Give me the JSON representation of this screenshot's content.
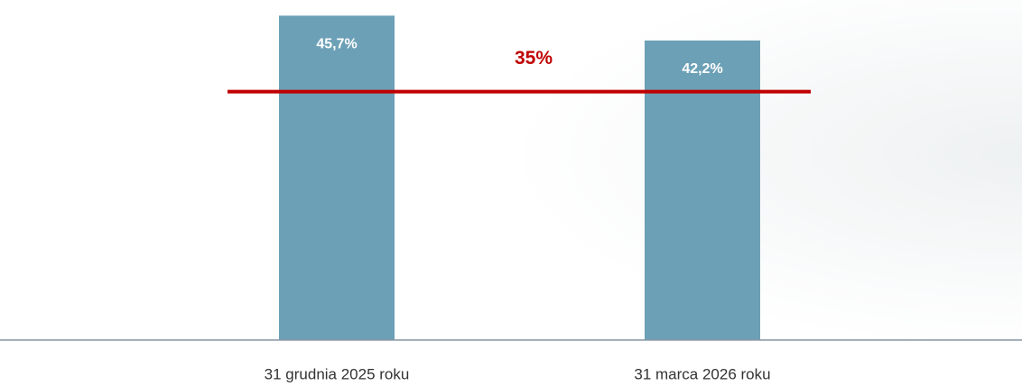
{
  "chart_data": {
    "type": "bar",
    "categories": [
      "31 grudnia 2025 roku",
      "31 marca 2026 roku"
    ],
    "values": [
      45.7,
      42.2
    ],
    "value_labels": [
      "45,7%",
      "42,2%"
    ],
    "color": "#6ca0b6",
    "ylim": [
      0,
      46
    ],
    "threshold": {
      "value": 35,
      "label": "35%",
      "color": "#c00000"
    }
  }
}
